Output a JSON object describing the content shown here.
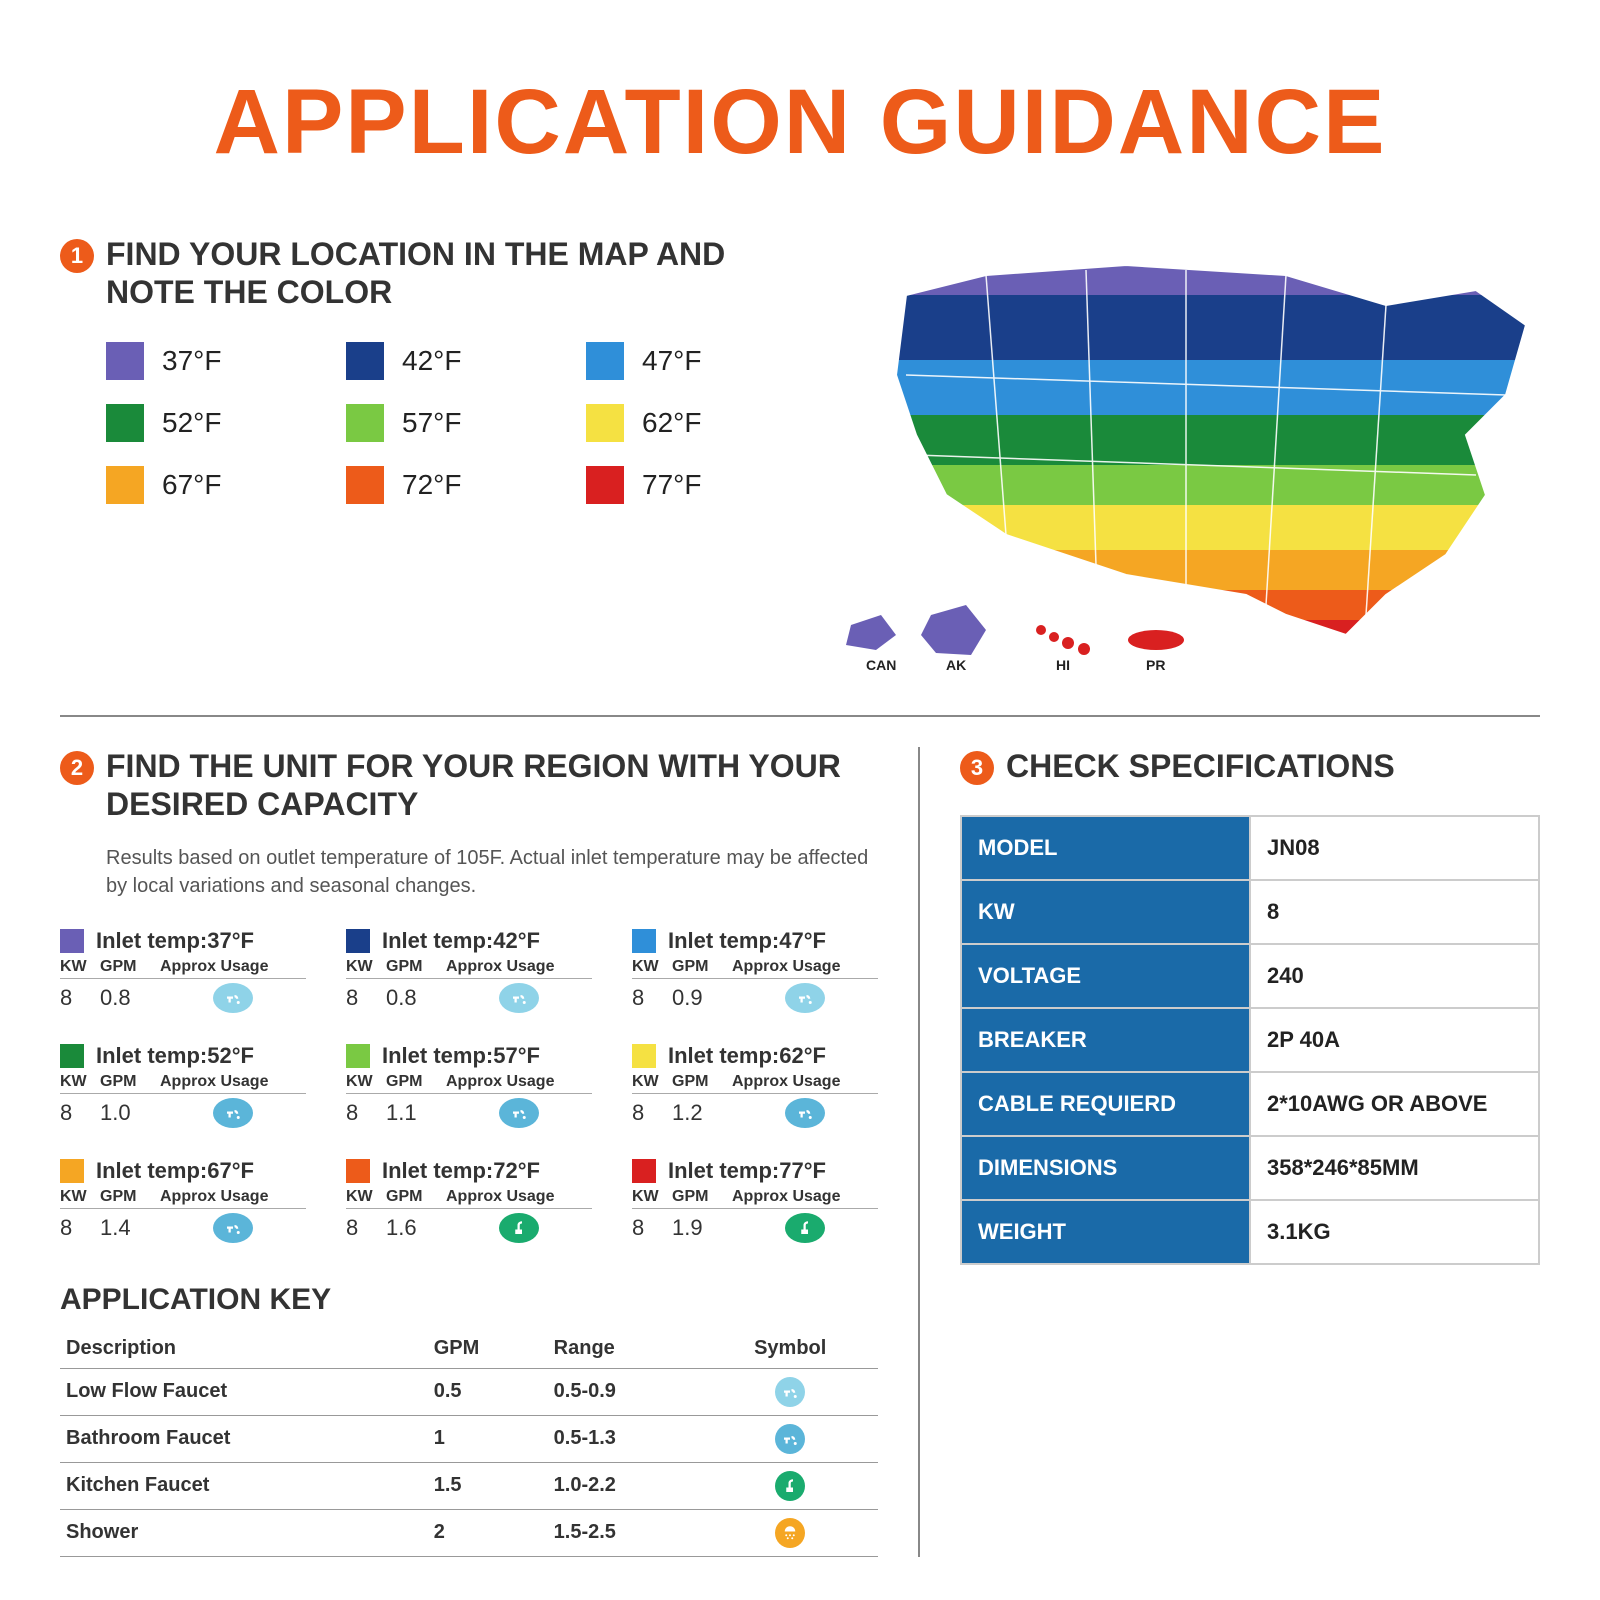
{
  "colors": {
    "accent": "#ed5b1a",
    "spec_header": "#1a6aa8",
    "icon_light": "#8fd3e8",
    "icon_mid": "#5bb5d9",
    "icon_green": "#1aab6e",
    "icon_orange": "#f5a623"
  },
  "title": "APPLICATION GUIDANCE",
  "step1": {
    "num": "1",
    "title": "FIND YOUR LOCATION IN THE MAP AND NOTE THE COLOR",
    "legend": [
      {
        "label": "37°F",
        "color": "#6a5fb5"
      },
      {
        "label": "42°F",
        "color": "#1a3f8a"
      },
      {
        "label": "47°F",
        "color": "#2f8fd9"
      },
      {
        "label": "52°F",
        "color": "#1a8a3a"
      },
      {
        "label": "57°F",
        "color": "#7ac943"
      },
      {
        "label": "62°F",
        "color": "#f5e142"
      },
      {
        "label": "67°F",
        "color": "#f5a623"
      },
      {
        "label": "72°F",
        "color": "#ed5b1a"
      },
      {
        "label": "77°F",
        "color": "#d92020"
      }
    ],
    "map_colors": {
      "band_purple": "#6a5fb5",
      "band_navy": "#1a3f8a",
      "band_blue": "#2f8fd9",
      "band_green": "#1a8a3a",
      "band_lime": "#7ac943",
      "band_yellow": "#f5e142",
      "band_orange": "#f5a623",
      "band_dorange": "#ed5b1a",
      "band_red": "#d92020"
    },
    "map_labels": {
      "can": "CAN",
      "ak": "AK",
      "hi": "HI",
      "pr": "PR"
    }
  },
  "step2": {
    "num": "2",
    "title": "FIND THE UNIT FOR YOUR REGION WITH YOUR DESIRED CAPACITY",
    "subtitle": "Results based on outlet temperature of 105F. Actual inlet temperature may be affected by local variations and seasonal changes.",
    "cols": {
      "kw": "KW",
      "gpm": "GPM",
      "usage": "Approx Usage"
    },
    "cards": [
      {
        "color": "#6a5fb5",
        "label": "Inlet temp:37°F",
        "kw": "8",
        "gpm": "0.8",
        "icon": "faucet",
        "icon_bg": "#8fd3e8"
      },
      {
        "color": "#1a3f8a",
        "label": "Inlet temp:42°F",
        "kw": "8",
        "gpm": "0.8",
        "icon": "faucet",
        "icon_bg": "#8fd3e8"
      },
      {
        "color": "#2f8fd9",
        "label": "Inlet temp:47°F",
        "kw": "8",
        "gpm": "0.9",
        "icon": "faucet",
        "icon_bg": "#8fd3e8"
      },
      {
        "color": "#1a8a3a",
        "label": "Inlet temp:52°F",
        "kw": "8",
        "gpm": "1.0",
        "icon": "faucet",
        "icon_bg": "#5bb5d9"
      },
      {
        "color": "#7ac943",
        "label": "Inlet temp:57°F",
        "kw": "8",
        "gpm": "1.1",
        "icon": "faucet",
        "icon_bg": "#5bb5d9"
      },
      {
        "color": "#f5e142",
        "label": "Inlet temp:62°F",
        "kw": "8",
        "gpm": "1.2",
        "icon": "faucet",
        "icon_bg": "#5bb5d9"
      },
      {
        "color": "#f5a623",
        "label": "Inlet temp:67°F",
        "kw": "8",
        "gpm": "1.4",
        "icon": "faucet",
        "icon_bg": "#5bb5d9"
      },
      {
        "color": "#ed5b1a",
        "label": "Inlet temp:72°F",
        "kw": "8",
        "gpm": "1.6",
        "icon": "kitchen",
        "icon_bg": "#1aab6e"
      },
      {
        "color": "#d92020",
        "label": "Inlet temp:77°F",
        "kw": "8",
        "gpm": "1.9",
        "icon": "kitchen",
        "icon_bg": "#1aab6e"
      }
    ]
  },
  "app_key": {
    "title": "APPLICATION KEY",
    "headers": {
      "desc": "Description",
      "gpm": "GPM",
      "range": "Range",
      "symbol": "Symbol"
    },
    "rows": [
      {
        "desc": "Low Flow Faucet",
        "gpm": "0.5",
        "range": "0.5-0.9",
        "icon_bg": "#8fd3e8",
        "icon": "faucet"
      },
      {
        "desc": "Bathroom Faucet",
        "gpm": "1",
        "range": "0.5-1.3",
        "icon_bg": "#5bb5d9",
        "icon": "faucet"
      },
      {
        "desc": "Kitchen Faucet",
        "gpm": "1.5",
        "range": "1.0-2.2",
        "icon_bg": "#1aab6e",
        "icon": "kitchen"
      },
      {
        "desc": "Shower",
        "gpm": "2",
        "range": "1.5-2.5",
        "icon_bg": "#f5a623",
        "icon": "shower"
      }
    ]
  },
  "step3": {
    "num": "3",
    "title": "CHECK SPECIFICATIONS",
    "rows": [
      {
        "k": "MODEL",
        "v": "JN08"
      },
      {
        "k": "KW",
        "v": "8"
      },
      {
        "k": "VOLTAGE",
        "v": "240"
      },
      {
        "k": "BREAKER",
        "v": "2P 40A"
      },
      {
        "k": "CABLE REQUIERD",
        "v": "2*10AWG OR ABOVE"
      },
      {
        "k": "DIMENSIONS",
        "v": "358*246*85MM"
      },
      {
        "k": "WEIGHT",
        "v": "3.1KG"
      }
    ]
  }
}
